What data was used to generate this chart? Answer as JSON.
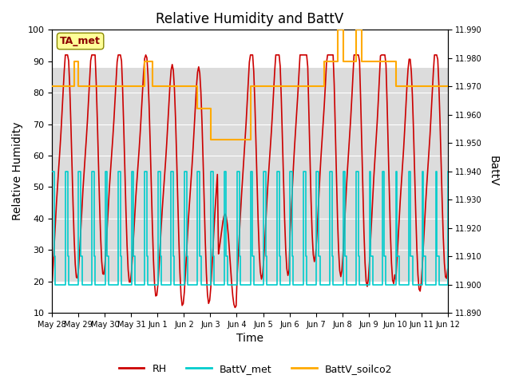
{
  "title": "Relative Humidity and BattV",
  "xlabel": "Time",
  "ylabel_left": "Relative Humidity",
  "ylabel_right": "BattV",
  "ylim_left": [
    10,
    100
  ],
  "ylim_right": [
    11.89,
    11.99
  ],
  "bg_band": [
    20,
    88
  ],
  "bg_color": "#dcdcdc",
  "annotation_text": "TA_met",
  "annotation_color": "#8b0000",
  "annotation_bg": "#ffff99",
  "line_rh_color": "#cc0000",
  "line_battv_met_color": "#00cccc",
  "line_battv_soilco2_color": "#ffaa00",
  "legend_labels": [
    "RH",
    "BattV_met",
    "BattV_soilco2"
  ],
  "x_tick_labels": [
    "May 28",
    "May 29",
    "May 30",
    "May 31",
    "Jun 1",
    "Jun 2",
    "Jun 3",
    "Jun 4",
    "Jun 5",
    "Jun 6",
    "Jun 7",
    "Jun 8",
    "Jun 9",
    "Jun 10",
    "Jun 11",
    "Jun 12"
  ]
}
